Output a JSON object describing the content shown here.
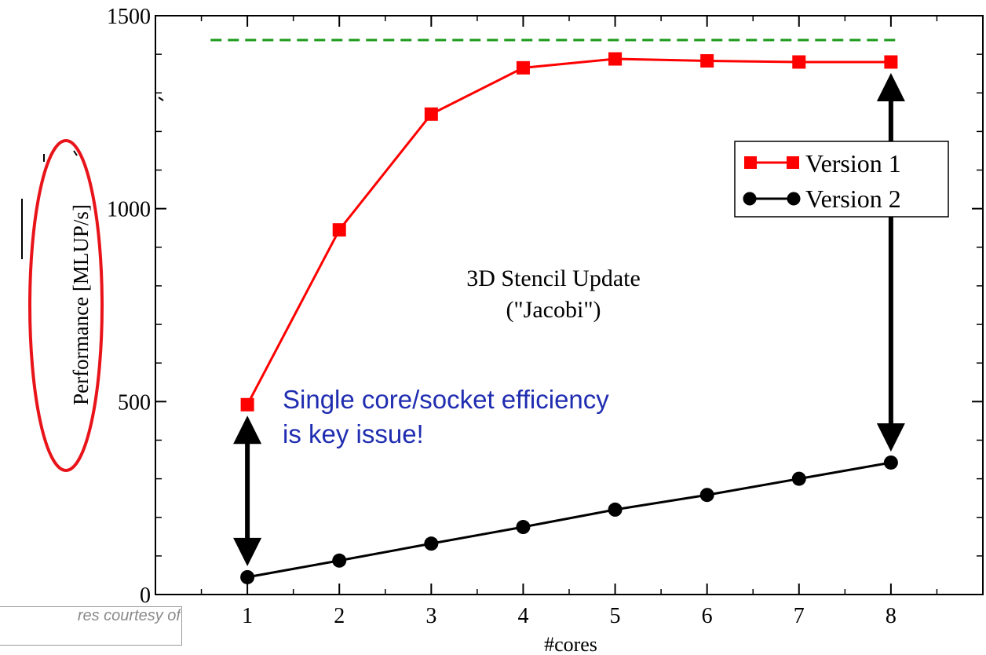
{
  "chart_data": {
    "type": "line",
    "xlabel": "#cores",
    "ylabel": "Performance [MLUP/s]",
    "xlim": [
      0,
      9
    ],
    "ylim": [
      0,
      1500
    ],
    "x_ticks": [
      1,
      2,
      3,
      4,
      5,
      6,
      7,
      8
    ],
    "y_ticks": [
      0,
      500,
      1000,
      1500
    ],
    "grid": false,
    "legend_position": "top-right",
    "series": [
      {
        "name": "Version 1",
        "color": "#ff0000",
        "marker": "square",
        "x": [
          1,
          2,
          3,
          4,
          5,
          6,
          7,
          8
        ],
        "values": [
          492,
          945,
          1245,
          1365,
          1388,
          1383,
          1380,
          1380
        ]
      },
      {
        "name": "Version 2",
        "color": "#000000",
        "marker": "circle",
        "x": [
          1,
          2,
          3,
          4,
          5,
          6,
          7,
          8
        ],
        "values": [
          45,
          88,
          132,
          175,
          220,
          258,
          300,
          342
        ]
      }
    ],
    "reference_line": {
      "y": 1437,
      "x_range": [
        0.6,
        8.1
      ],
      "color": "#1a9a1a",
      "style": "dashed"
    },
    "annotation_title": [
      "3D Stencil Update",
      "(\"Jacobi\")"
    ],
    "callout": [
      "Single core/socket efficiency",
      "is key issue!"
    ],
    "callout_color": "#1f2db0",
    "gap_arrows": [
      {
        "x": 1,
        "from": 45,
        "to": 492
      },
      {
        "x": 8,
        "from": 342,
        "to": 1380
      }
    ],
    "highlight_color": "#e8141a"
  },
  "caption": "res courtesy of"
}
